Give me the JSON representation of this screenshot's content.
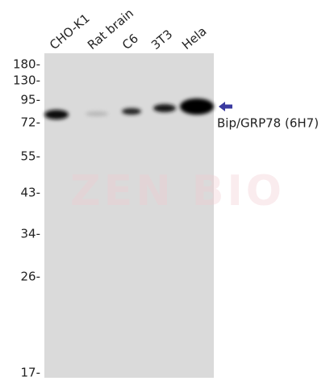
{
  "lanes": [
    "CHO-K1",
    "Rat brain",
    "C6",
    "3T3",
    "Hela"
  ],
  "markers": [
    "180-",
    "130-",
    "95-",
    "72-",
    "55-",
    "43-",
    "34-",
    "26-",
    "17-"
  ],
  "target": "Bip/GRP78 (6H7)",
  "watermark": "ZEN BIO"
}
